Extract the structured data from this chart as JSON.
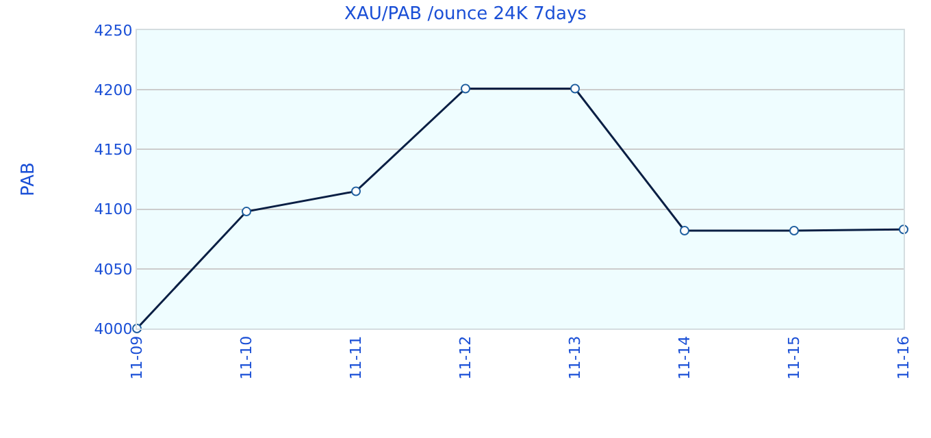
{
  "chart_data": {
    "type": "line",
    "title": "XAU/PAB /ounce 24K 7days",
    "ylabel": "PAB",
    "categories": [
      "11-09",
      "11-10",
      "11-11",
      "11-12",
      "11-13",
      "11-14",
      "11-15",
      "11-16"
    ],
    "series": [
      {
        "color": "#0a1f44",
        "values": [
          4000,
          4098,
          4115,
          4201,
          4201,
          4082,
          4082,
          4083
        ]
      }
    ],
    "ylim": [
      4000,
      4250
    ],
    "yticks": [
      4000,
      4050,
      4100,
      4150,
      4200,
      4250
    ],
    "grid": "y",
    "marker": "circle",
    "line_style": "solid",
    "legend": false
  }
}
